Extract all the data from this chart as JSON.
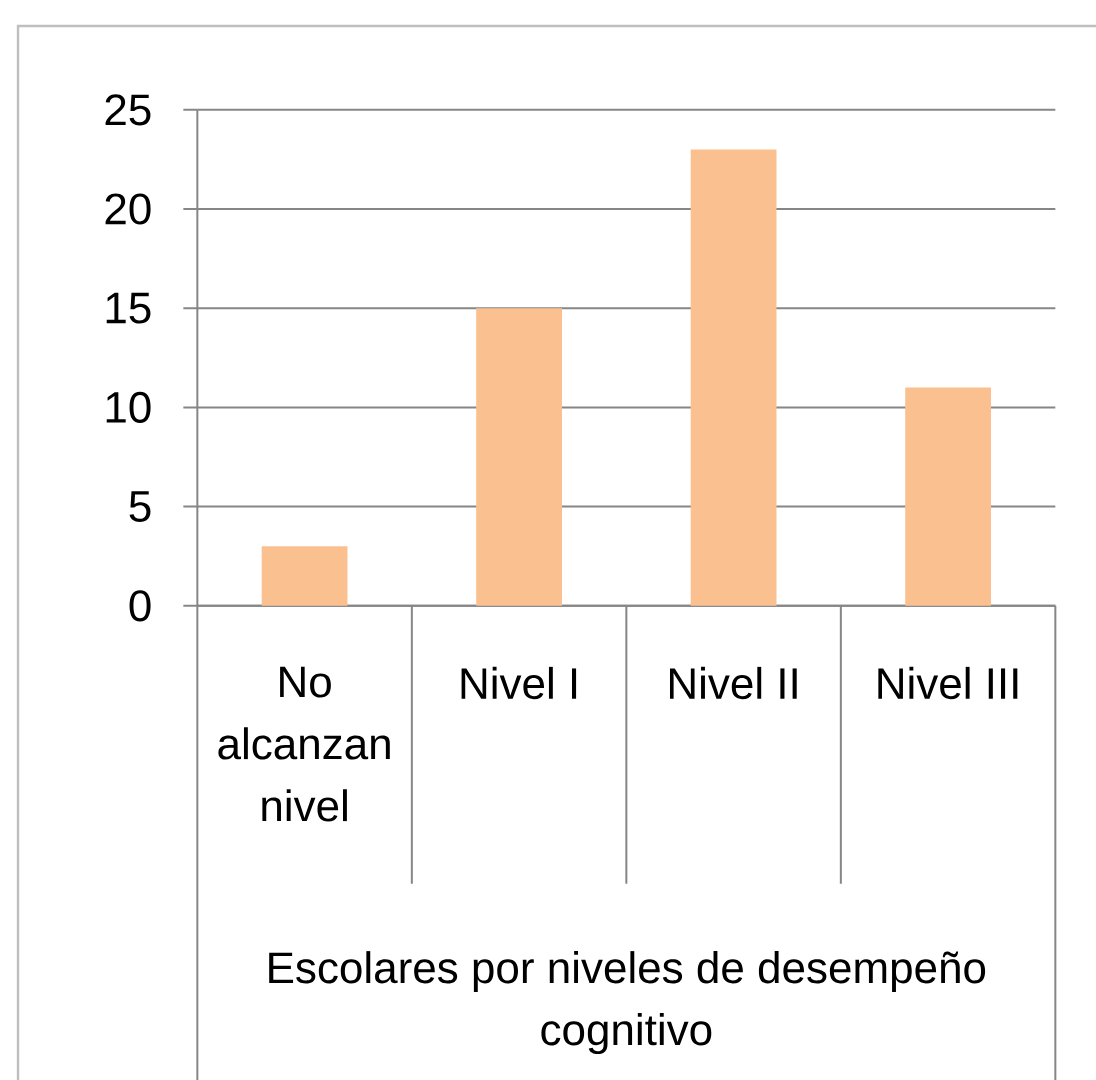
{
  "chart_data": {
    "type": "bar",
    "categories": [
      "No alcanzan nivel",
      "Nivel I",
      "Nivel II",
      "Nivel III"
    ],
    "values": [
      3,
      15,
      23,
      11
    ],
    "color": "#fac090",
    "xlabel": "Escolares por niveles de desempeño cognitivo",
    "ylim": [
      0,
      25
    ],
    "yticks": [
      0,
      5,
      10,
      15,
      20,
      25
    ],
    "grid": "y"
  }
}
